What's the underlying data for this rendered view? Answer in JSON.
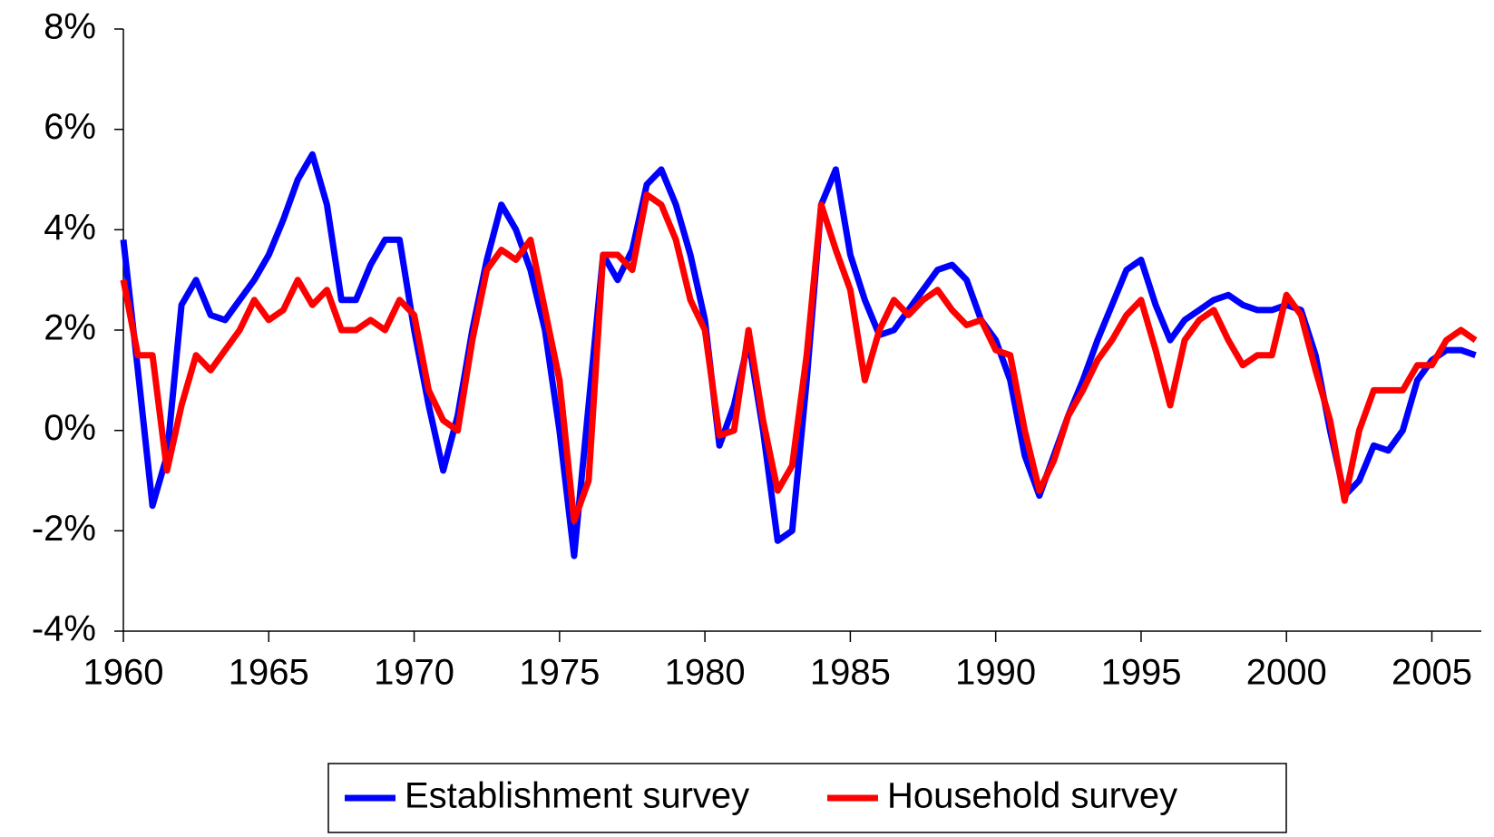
{
  "chart_data": {
    "type": "line",
    "x": [
      1960,
      1960.5,
      1961,
      1961.5,
      1962,
      1962.5,
      1963,
      1963.5,
      1964,
      1964.5,
      1965,
      1965.5,
      1966,
      1966.5,
      1967,
      1967.5,
      1968,
      1968.5,
      1969,
      1969.5,
      1970,
      1970.5,
      1971,
      1971.5,
      1972,
      1972.5,
      1973,
      1973.5,
      1974,
      1974.5,
      1975,
      1975.5,
      1976,
      1976.5,
      1977,
      1977.5,
      1978,
      1978.5,
      1979,
      1979.5,
      1980,
      1980.5,
      1981,
      1981.5,
      1982,
      1982.5,
      1983,
      1983.5,
      1984,
      1984.5,
      1985,
      1985.5,
      1986,
      1986.5,
      1987,
      1987.5,
      1988,
      1988.5,
      1989,
      1989.5,
      1990,
      1990.5,
      1991,
      1991.5,
      1992,
      1992.5,
      1993,
      1993.5,
      1994,
      1994.5,
      1995,
      1995.5,
      1996,
      1996.5,
      1997,
      1997.5,
      1998,
      1998.5,
      1999,
      1999.5,
      2000,
      2000.5,
      2001,
      2001.5,
      2002,
      2002.5,
      2003,
      2003.5,
      2004,
      2004.5,
      2005,
      2005.5,
      2006,
      2006.5
    ],
    "series": [
      {
        "name": "Establishment survey",
        "color": "#0000ff",
        "values": [
          3.8,
          1.2,
          -1.5,
          -0.5,
          2.5,
          3.0,
          2.3,
          2.2,
          2.6,
          3.0,
          3.5,
          4.2,
          5.0,
          5.5,
          4.5,
          2.6,
          2.6,
          3.3,
          3.8,
          3.8,
          2.0,
          0.5,
          -0.8,
          0.3,
          2.0,
          3.4,
          4.5,
          4.0,
          3.2,
          2.0,
          0.0,
          -2.5,
          0.5,
          3.5,
          3.0,
          3.6,
          4.9,
          5.2,
          4.5,
          3.5,
          2.2,
          -0.3,
          0.5,
          1.8,
          0.0,
          -2.2,
          -2.0,
          1.0,
          4.5,
          5.2,
          3.5,
          2.6,
          1.9,
          2.0,
          2.4,
          2.8,
          3.2,
          3.3,
          3.0,
          2.2,
          1.8,
          1.0,
          -0.5,
          -1.3,
          -0.5,
          0.3,
          1.0,
          1.8,
          2.5,
          3.2,
          3.4,
          2.5,
          1.8,
          2.2,
          2.4,
          2.6,
          2.7,
          2.5,
          2.4,
          2.4,
          2.5,
          2.4,
          1.5,
          0.0,
          -1.3,
          -1.0,
          -0.3,
          -0.4,
          0.0,
          1.0,
          1.4,
          1.6,
          1.6,
          1.5
        ]
      },
      {
        "name": "Household survey",
        "color": "#ff0000",
        "values": [
          3.0,
          1.5,
          1.5,
          -0.8,
          0.5,
          1.5,
          1.2,
          1.6,
          2.0,
          2.6,
          2.2,
          2.4,
          3.0,
          2.5,
          2.8,
          2.0,
          2.0,
          2.2,
          2.0,
          2.6,
          2.3,
          0.8,
          0.2,
          0.0,
          1.8,
          3.2,
          3.6,
          3.4,
          3.8,
          2.4,
          1.0,
          -1.8,
          -1.0,
          3.5,
          3.5,
          3.2,
          4.7,
          4.5,
          3.8,
          2.6,
          2.0,
          -0.1,
          0.0,
          2.0,
          0.2,
          -1.2,
          -0.7,
          1.5,
          4.5,
          3.6,
          2.8,
          1.0,
          2.0,
          2.6,
          2.3,
          2.6,
          2.8,
          2.4,
          2.1,
          2.2,
          1.6,
          1.5,
          0.0,
          -1.2,
          -0.6,
          0.3,
          0.8,
          1.4,
          1.8,
          2.3,
          2.6,
          1.6,
          0.5,
          1.8,
          2.2,
          2.4,
          1.8,
          1.3,
          1.5,
          1.5,
          2.7,
          2.3,
          1.2,
          0.2,
          -1.4,
          0.0,
          0.8,
          0.8,
          0.8,
          1.3,
          1.3,
          1.8,
          2.0,
          1.8
        ]
      }
    ],
    "xlim": [
      1960,
      2006.7
    ],
    "xticks": [
      1960,
      1965,
      1970,
      1975,
      1980,
      1985,
      1990,
      1995,
      2000,
      2005
    ],
    "ylim": [
      -4,
      8
    ],
    "yticks": [
      {
        "value": -4,
        "label": "-4%"
      },
      {
        "value": -2,
        "label": "-2%"
      },
      {
        "value": 0,
        "label": "0%"
      },
      {
        "value": 2,
        "label": "2%"
      },
      {
        "value": 4,
        "label": "4%"
      },
      {
        "value": 6,
        "label": "6%"
      },
      {
        "value": 8,
        "label": "8%"
      }
    ],
    "grid": false
  }
}
